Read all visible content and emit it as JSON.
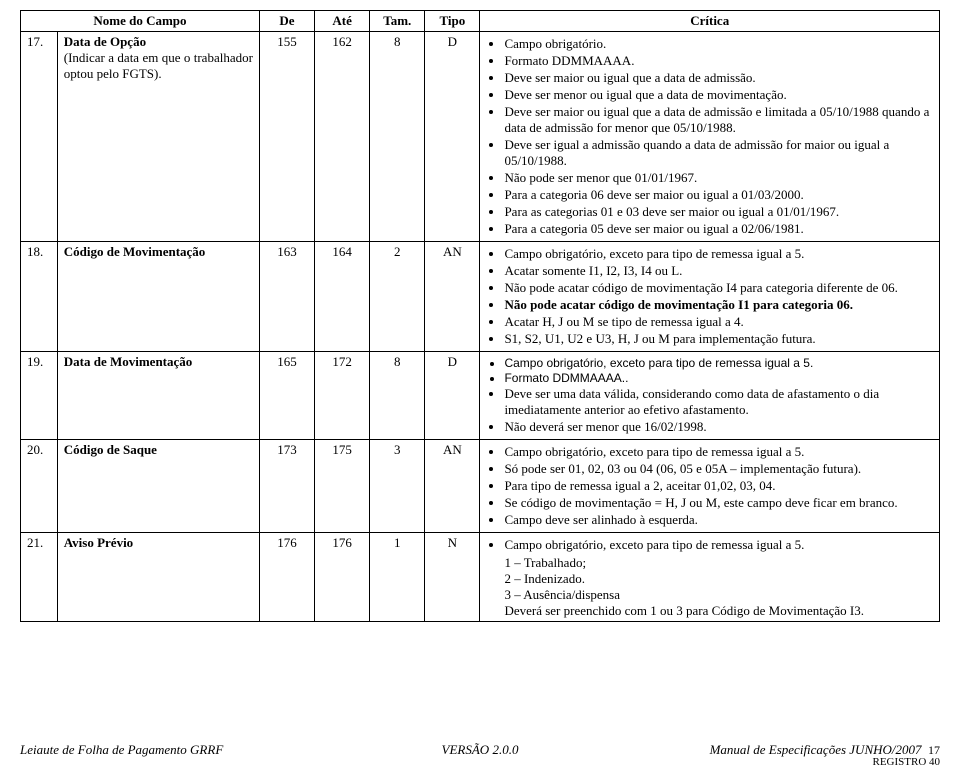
{
  "headers": {
    "field_name": "Nome do Campo",
    "from": "De",
    "to": "Até",
    "size": "Tam.",
    "type": "Tipo",
    "critique": "Crítica"
  },
  "rows": [
    {
      "n": "17.",
      "name": "Data de Opção",
      "name_extra": "(Indicar a data em que o trabalhador optou pelo FGTS).",
      "from": "155",
      "to": "162",
      "size": "8",
      "type": "D",
      "crit": [
        "Campo obrigatório.",
        "Formato DDMMAAAA.",
        "Deve ser maior ou igual que a data de admissão.",
        "Deve ser menor ou igual que a data de movimentação.",
        "Deve ser maior ou igual que a data de admissão e limitada a 05/10/1988 quando a data de admissão for menor que 05/10/1988.",
        "Deve ser igual a admissão quando a data de admissão for  maior ou igual a 05/10/1988.",
        "Não pode  ser menor que 01/01/1967.",
        "Para a categoria 06  deve ser maior ou igual a 01/03/2000.",
        "Para as categorias 01 e 03 deve ser maior ou igual a 01/01/1967.",
        "Para a categoria 05  deve ser maior ou igual a 02/06/1981."
      ]
    },
    {
      "n": "18.",
      "name": "Código de Movimentação",
      "from": "163",
      "to": "164",
      "size": "2",
      "type": "AN",
      "crit": [
        "Campo obrigatório, exceto para tipo de remessa igual a  5.",
        "Acatar somente  I1, I2, I3, I4 ou L.",
        "Não pode acatar código de movimentação I4 para categoria diferente de 06.",
        "Não pode acatar código de movimentação I1 para categoria 06.",
        "Acatar H, J ou M se tipo de remessa igual a 4.",
        "S1, S2, U1, U2 e U3, H, J ou M para implementação futura."
      ],
      "bold_idx": [
        3
      ]
    },
    {
      "n": "19.",
      "name": "Data de Movimentação",
      "from": "165",
      "to": "172",
      "size": "8",
      "type": "D",
      "crit": [
        "Campo obrigatório, exceto para tipo de remessa igual a 5.",
        "Formato DDMMAAAA..",
        "Deve ser uma data válida, considerando como data de afastamento o dia imediatamente anterior ao efetivo afastamento.",
        "Não deverá ser menor que 16/02/1998."
      ],
      "arial_idx": [
        0,
        1
      ]
    },
    {
      "n": "20.",
      "name": "Código de Saque",
      "from": "173",
      "to": "175",
      "size": "3",
      "type": "AN",
      "crit": [
        "Campo obrigatório, exceto para tipo de remessa igual a 5.",
        "Só pode ser 01, 02, 03 ou 04 (06, 05 e 05A – implementação futura).",
        "Para tipo de remessa igual a 2, aceitar 01,02, 03, 04.",
        "Se código de movimentação = H, J ou M, este campo deve ficar em branco.",
        " Campo deve ser alinhado à esquerda."
      ]
    },
    {
      "n": "21.",
      "name": "Aviso Prévio",
      "from": "176",
      "to": "176",
      "size": "1",
      "type": "N",
      "crit": [
        "Campo obrigatório, exceto para tipo de remessa igual a 5."
      ],
      "tail": [
        "1 – Trabalhado;",
        "2 – Indenizado.",
        "3 – Ausência/dispensa",
        "Deverá ser preenchido com 1 ou 3 para Código de Movimentação I3."
      ]
    }
  ],
  "footer": {
    "left": "Leiaute de Folha de Pagamento GRRF",
    "mid": "VERSÃO 2.0.0",
    "right": "Manual de Especificações JUNHO/2007",
    "page": "17",
    "reg": "REGISTRO 40"
  },
  "cols": {
    "n": "4%",
    "name": "22%",
    "from": "6%",
    "to": "6%",
    "size": "6%",
    "type": "6%",
    "crit": "50%"
  }
}
